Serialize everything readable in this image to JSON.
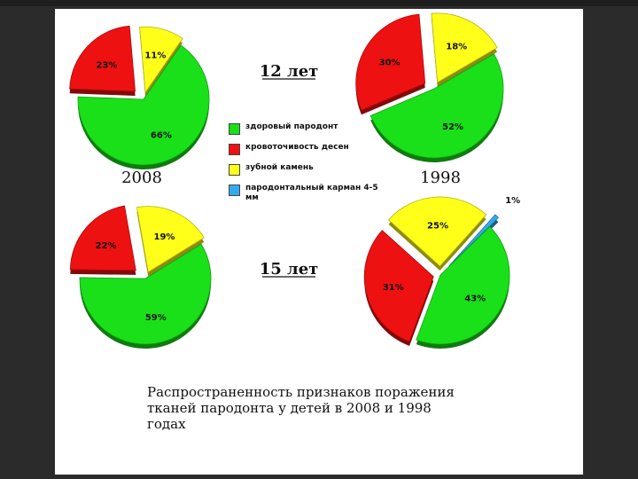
{
  "chart_data": {
    "type": "pie",
    "legend": [
      {
        "label": "здоровый пародонт",
        "color": "#19e019"
      },
      {
        "label": "кровоточивость десен",
        "color": "#ee1111"
      },
      {
        "label": "зубной камень",
        "color": "#ffff1a"
      },
      {
        "label": "пародонтальный карман 4-5 мм",
        "color": "#33aaee"
      }
    ],
    "row_labels": [
      "12 лет",
      "15 лет"
    ],
    "column_labels": [
      "2008",
      "1998"
    ],
    "pies": [
      {
        "age": "12 лет",
        "year": "2008",
        "slices": [
          {
            "category": "здоровый пародонт",
            "value": 66,
            "label": "66%"
          },
          {
            "category": "кровоточивость десен",
            "value": 23,
            "label": "23%"
          },
          {
            "category": "зубной камень",
            "value": 11,
            "label": "11%"
          }
        ]
      },
      {
        "age": "12 лет",
        "year": "1998",
        "slices": [
          {
            "category": "здоровый пародонт",
            "value": 52,
            "label": "52%"
          },
          {
            "category": "кровоточивость десен",
            "value": 30,
            "label": "30%"
          },
          {
            "category": "зубной камень",
            "value": 18,
            "label": "18%"
          }
        ]
      },
      {
        "age": "15 лет",
        "year": "2008",
        "slices": [
          {
            "category": "здоровый пародонт",
            "value": 59,
            "label": "59%"
          },
          {
            "category": "кровоточивость десен",
            "value": 22,
            "label": "22%"
          },
          {
            "category": "зубной камень",
            "value": 19,
            "label": "19%"
          }
        ]
      },
      {
        "age": "15 лет",
        "year": "1998",
        "slices": [
          {
            "category": "здоровый пародонт",
            "value": 43,
            "label": "43%"
          },
          {
            "category": "кровоточивость десен",
            "value": 31,
            "label": "31%"
          },
          {
            "category": "зубной камень",
            "value": 25,
            "label": "25%"
          },
          {
            "category": "пародонтальный карман 4-5 мм",
            "value": 1,
            "label": "1%"
          }
        ]
      }
    ]
  },
  "caption": "Распространенность признаков поражения тканей пародонта у детей в 2008 и 1998 годах"
}
